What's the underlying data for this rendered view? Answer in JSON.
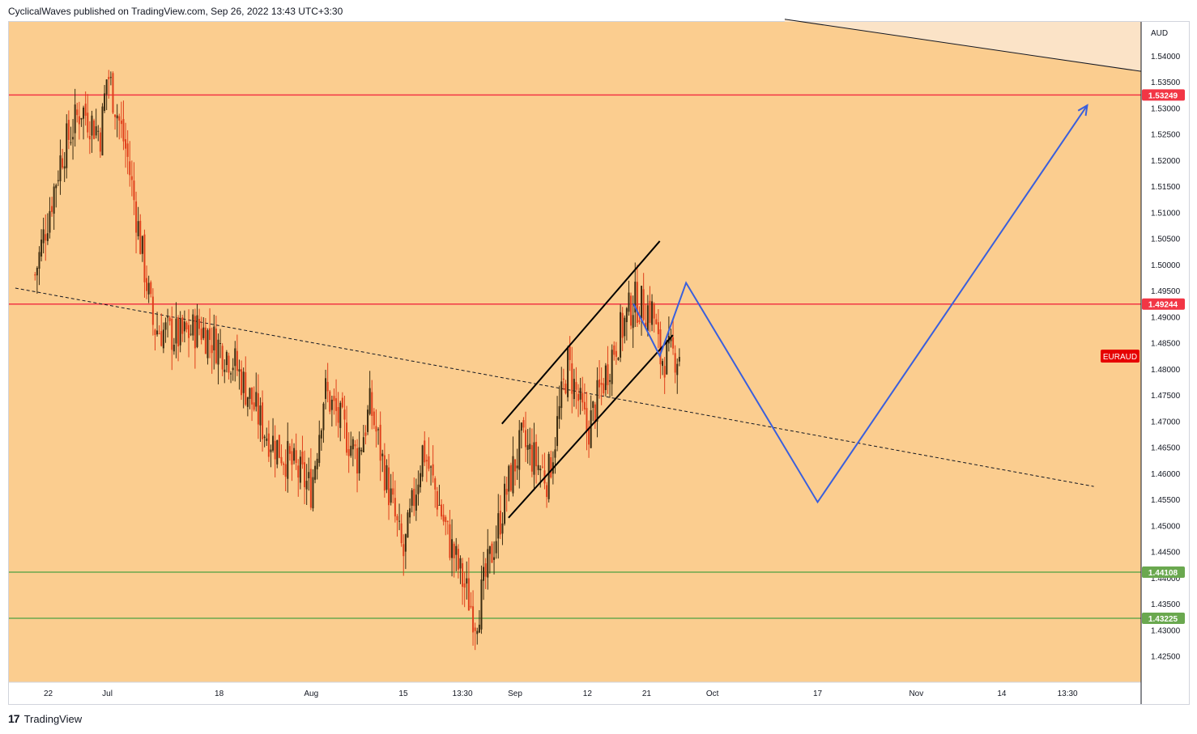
{
  "header": {
    "text": "CyclicalWaves published on TradingView.com, Sep 26, 2022 13:43 UTC+3:30"
  },
  "footer": {
    "brand": "TradingView",
    "logo_glyph": "17"
  },
  "colors": {
    "background": "#fbcd8f",
    "future_zone": "#fbe3c7",
    "bull": "#3b2b10",
    "bear": "#e0401b",
    "resistance": "#f23645",
    "support": "#6aa84f",
    "projection": "#3a5fdc",
    "channel": "#000000",
    "symbol_tag": "#e60000"
  },
  "chart_data": {
    "type": "candlestick",
    "symbol": "EURAUD",
    "currency": "AUD",
    "ylim": [
      1.42,
      1.5465
    ],
    "y_ticks": [
      "1.54000",
      "1.53500",
      "1.53000",
      "1.52500",
      "1.52000",
      "1.51500",
      "1.51000",
      "1.50500",
      "1.50000",
      "1.49500",
      "1.49000",
      "1.48500",
      "1.48000",
      "1.47500",
      "1.47000",
      "1.46500",
      "1.46000",
      "1.45500",
      "1.45000",
      "1.44500",
      "1.44000",
      "1.43500",
      "1.43000",
      "1.42500"
    ],
    "x_ticks": [
      "22",
      "Jul",
      "18",
      "Aug",
      "15",
      "13:30",
      "Sep",
      "12",
      "21",
      "Oct",
      "17",
      "Nov",
      "14",
      "13:30"
    ],
    "levels": [
      {
        "label": "1.53249",
        "value": 1.53249,
        "kind": "resistance"
      },
      {
        "label": "1.49244",
        "value": 1.49244,
        "kind": "resistance"
      },
      {
        "label": "1.44108",
        "value": 1.44108,
        "kind": "support"
      },
      {
        "label": "1.43225",
        "value": 1.43225,
        "kind": "support"
      }
    ],
    "path_keypoints": [
      [
        "Jun 20",
        1.498
      ],
      [
        "Jun 24",
        1.521
      ],
      [
        "Jun 27",
        1.53
      ],
      [
        "Jun 30",
        1.525
      ],
      [
        "Jul 1",
        1.537
      ],
      [
        "Jul 4",
        1.521
      ],
      [
        "Jul 8",
        1.488
      ],
      [
        "Jul 12",
        1.486
      ],
      [
        "Jul 15",
        1.488
      ],
      [
        "Jul 20",
        1.482
      ],
      [
        "Jul 25",
        1.468
      ],
      [
        "Aug 1",
        1.457
      ],
      [
        "Aug 3",
        1.476
      ],
      [
        "Aug 8",
        1.463
      ],
      [
        "Aug 10",
        1.473
      ],
      [
        "Aug 15",
        1.444
      ],
      [
        "Aug 18",
        1.465
      ],
      [
        "Aug 22",
        1.447
      ],
      [
        "Aug 26",
        1.432
      ],
      [
        "Aug 31",
        1.458
      ],
      [
        "Sep 2",
        1.466
      ],
      [
        "Sep 6",
        1.459
      ],
      [
        "Sep 9",
        1.481
      ],
      [
        "Sep 12",
        1.468
      ],
      [
        "Sep 16",
        1.484
      ],
      [
        "Sep 19",
        1.493
      ],
      [
        "Sep 22",
        1.491
      ],
      [
        "Sep 23",
        1.482
      ],
      [
        "Sep 26",
        1.483
      ]
    ],
    "projection": [
      [
        "Sep 19",
        1.4925
      ],
      [
        "Sep 23",
        1.4825
      ],
      [
        "Sep 27",
        1.4965
      ],
      [
        "Oct 17",
        1.4545
      ],
      [
        "Nov 27",
        1.5305
      ]
    ],
    "channel": {
      "upper": [
        [
          "Aug 30",
          1.4695
        ],
        [
          "Sep 23",
          1.5045
        ]
      ],
      "lower": [
        [
          "Aug 31",
          1.4515
        ],
        [
          "Sep 25",
          1.4865
        ]
      ]
    },
    "dashed_trend": [
      [
        "Jun 17",
        1.4955
      ],
      [
        "Nov 28",
        1.4575
      ]
    ],
    "descending_line": [
      [
        "Oct 12",
        1.547
      ],
      [
        "Dec 8",
        1.5365
      ]
    ],
    "grid": false,
    "legend": "none"
  }
}
